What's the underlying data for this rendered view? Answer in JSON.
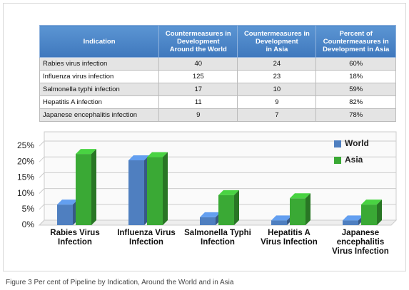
{
  "table": {
    "header": [
      "Indication",
      "Countermeasures in\nDevelopment\nAround the World",
      "Countermeasures in\nDevelopment\nin Asia",
      "Percent of\nCountermeasures in\nDevelopment in Asia"
    ],
    "rows": [
      [
        "Rabies virus infection",
        "40",
        "24",
        "60%"
      ],
      [
        "Influenza virus infection",
        "125",
        "23",
        "18%"
      ],
      [
        "Salmonella typhi infection",
        "17",
        "10",
        "59%"
      ],
      [
        "Hepatitis A infection",
        "11",
        "9",
        "82%"
      ],
      [
        "Japanese encephalitis infection",
        "9",
        "7",
        "78%"
      ]
    ]
  },
  "chart_data": {
    "type": "bar3d",
    "categories": [
      "Rabies Virus\nInfection",
      "Influenza Virus\nInfection",
      "Salmonella Typhi\nInfection",
      "Hepatitis A\nVirus Infection",
      "Japanese encephalitis\nVirus Infection"
    ],
    "series": [
      {
        "name": "World",
        "color": "#4f7fc0",
        "values": [
          6.5,
          20.5,
          2.5,
          1.5,
          1.5
        ]
      },
      {
        "name": "Asia",
        "color": "#3aa935",
        "values": [
          22.5,
          21.5,
          9.5,
          8.5,
          6.5
        ]
      }
    ],
    "ylim": [
      0,
      25
    ],
    "yticks": [
      {
        "value": 0,
        "label": "0%"
      },
      {
        "value": 5,
        "label": "5%"
      },
      {
        "value": 10,
        "label": "10%"
      },
      {
        "value": 15,
        "label": "15%"
      },
      {
        "value": 20,
        "label": "20%"
      },
      {
        "value": 25,
        "label": "25%"
      }
    ],
    "grid": true,
    "legend": "top-right"
  },
  "caption": "Figure 3 Per cent of Pipeline by Indication, Around the World and in Asia"
}
